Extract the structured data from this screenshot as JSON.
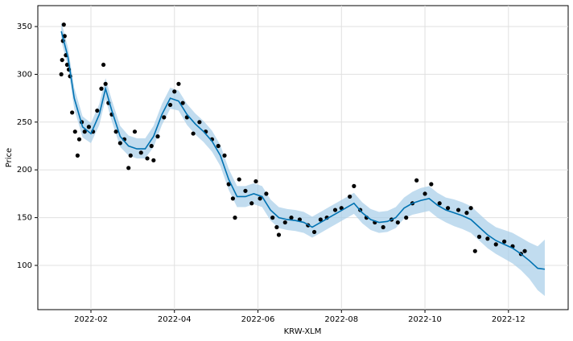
{
  "chart_data": {
    "type": "forecast",
    "xlabel": "KRW-XLM",
    "ylabel": "Price",
    "grid": true,
    "xlim": [
      0.728,
      13.43
    ],
    "ylim": [
      53.7,
      371.9
    ],
    "xticks": [
      {
        "value": 2,
        "label": "2022-02"
      },
      {
        "value": 4,
        "label": "2022-04"
      },
      {
        "value": 6,
        "label": "2022-06"
      },
      {
        "value": 8,
        "label": "2022-08"
      },
      {
        "value": 10,
        "label": "2022-10"
      },
      {
        "value": 12,
        "label": "2022-12"
      }
    ],
    "yticks": [
      100,
      150,
      200,
      250,
      300,
      350
    ],
    "line_color": "#0072b2",
    "band_color": "#a6cde8",
    "point_color": "#000000",
    "x": [
      1.29,
      1.45,
      1.6,
      1.8,
      2.0,
      2.2,
      2.35,
      2.5,
      2.7,
      2.9,
      3.1,
      3.3,
      3.5,
      3.7,
      3.9,
      4.1,
      4.3,
      4.5,
      4.7,
      4.9,
      5.1,
      5.3,
      5.5,
      5.7,
      5.9,
      6.1,
      6.3,
      6.5,
      6.7,
      6.9,
      7.1,
      7.3,
      7.5,
      7.7,
      7.9,
      8.1,
      8.3,
      8.5,
      8.7,
      8.9,
      9.1,
      9.3,
      9.5,
      9.7,
      9.9,
      10.1,
      10.3,
      10.5,
      10.7,
      10.9,
      11.1,
      11.3,
      11.5,
      11.7,
      11.9,
      12.1,
      12.3,
      12.5,
      12.7,
      12.87
    ],
    "values": [
      345,
      318,
      275,
      245,
      238,
      258,
      285,
      262,
      235,
      225,
      222,
      222,
      235,
      258,
      275,
      272,
      258,
      248,
      240,
      230,
      215,
      190,
      172,
      172,
      175,
      172,
      158,
      150,
      148,
      147,
      145,
      140,
      145,
      150,
      155,
      160,
      165,
      155,
      148,
      145,
      146,
      150,
      160,
      165,
      168,
      170,
      163,
      158,
      155,
      152,
      148,
      140,
      132,
      126,
      122,
      118,
      112,
      105,
      97,
      96
    ],
    "lower": [
      335,
      308,
      264,
      234,
      228,
      247,
      274,
      251,
      224,
      215,
      212,
      212,
      224,
      247,
      264,
      262,
      247,
      237,
      229,
      219,
      204,
      179,
      161,
      161,
      164,
      161,
      147,
      139,
      137,
      136,
      134,
      129,
      134,
      139,
      144,
      149,
      154,
      144,
      137,
      134,
      135,
      139,
      149,
      153,
      155,
      157,
      150,
      145,
      141,
      138,
      134,
      126,
      118,
      112,
      107,
      102,
      95,
      86,
      74,
      68
    ],
    "upper": [
      355,
      328,
      286,
      256,
      249,
      269,
      296,
      273,
      246,
      236,
      233,
      233,
      246,
      269,
      286,
      283,
      269,
      259,
      251,
      241,
      226,
      201,
      183,
      183,
      186,
      183,
      169,
      161,
      159,
      158,
      156,
      151,
      156,
      161,
      166,
      171,
      176,
      166,
      159,
      156,
      157,
      161,
      171,
      177,
      181,
      183,
      176,
      171,
      169,
      166,
      162,
      154,
      146,
      140,
      137,
      134,
      129,
      124,
      120,
      127
    ],
    "observed": {
      "x": [
        1.29,
        1.31,
        1.33,
        1.35,
        1.37,
        1.4,
        1.43,
        1.47,
        1.5,
        1.55,
        1.62,
        1.68,
        1.72,
        1.78,
        1.85,
        1.95,
        2.05,
        2.15,
        2.25,
        2.3,
        2.35,
        2.42,
        2.5,
        2.6,
        2.7,
        2.8,
        2.9,
        2.95,
        3.05,
        3.2,
        3.35,
        3.45,
        3.5,
        3.6,
        3.75,
        3.9,
        4.0,
        4.1,
        4.2,
        4.3,
        4.45,
        4.6,
        4.75,
        4.9,
        5.05,
        5.2,
        5.3,
        5.4,
        5.45,
        5.55,
        5.7,
        5.85,
        5.95,
        6.05,
        6.2,
        6.35,
        6.45,
        6.5,
        6.65,
        6.8,
        7.0,
        7.2,
        7.35,
        7.5,
        7.65,
        7.85,
        8.0,
        8.2,
        8.3,
        8.45,
        8.6,
        8.8,
        9.0,
        9.2,
        9.35,
        9.55,
        9.7,
        9.8,
        10.0,
        10.15,
        10.35,
        10.55,
        10.8,
        11.0,
        11.1,
        11.2,
        11.3,
        11.5,
        11.7,
        11.9,
        12.1,
        12.3,
        12.39
      ],
      "values": [
        300,
        315,
        335,
        352,
        340,
        320,
        310,
        305,
        298,
        260,
        240,
        215,
        232,
        250,
        240,
        245,
        240,
        262,
        285,
        310,
        290,
        270,
        258,
        240,
        228,
        232,
        202,
        215,
        240,
        218,
        212,
        225,
        210,
        235,
        255,
        268,
        282,
        290,
        270,
        255,
        238,
        250,
        240,
        232,
        225,
        215,
        185,
        170,
        150,
        190,
        178,
        165,
        188,
        170,
        175,
        150,
        140,
        132,
        145,
        150,
        148,
        142,
        135,
        148,
        150,
        158,
        160,
        172,
        183,
        158,
        150,
        145,
        140,
        148,
        145,
        150,
        165,
        189,
        175,
        185,
        165,
        160,
        158,
        155,
        160,
        115,
        130,
        128,
        122,
        125,
        120,
        112,
        115
      ]
    }
  }
}
